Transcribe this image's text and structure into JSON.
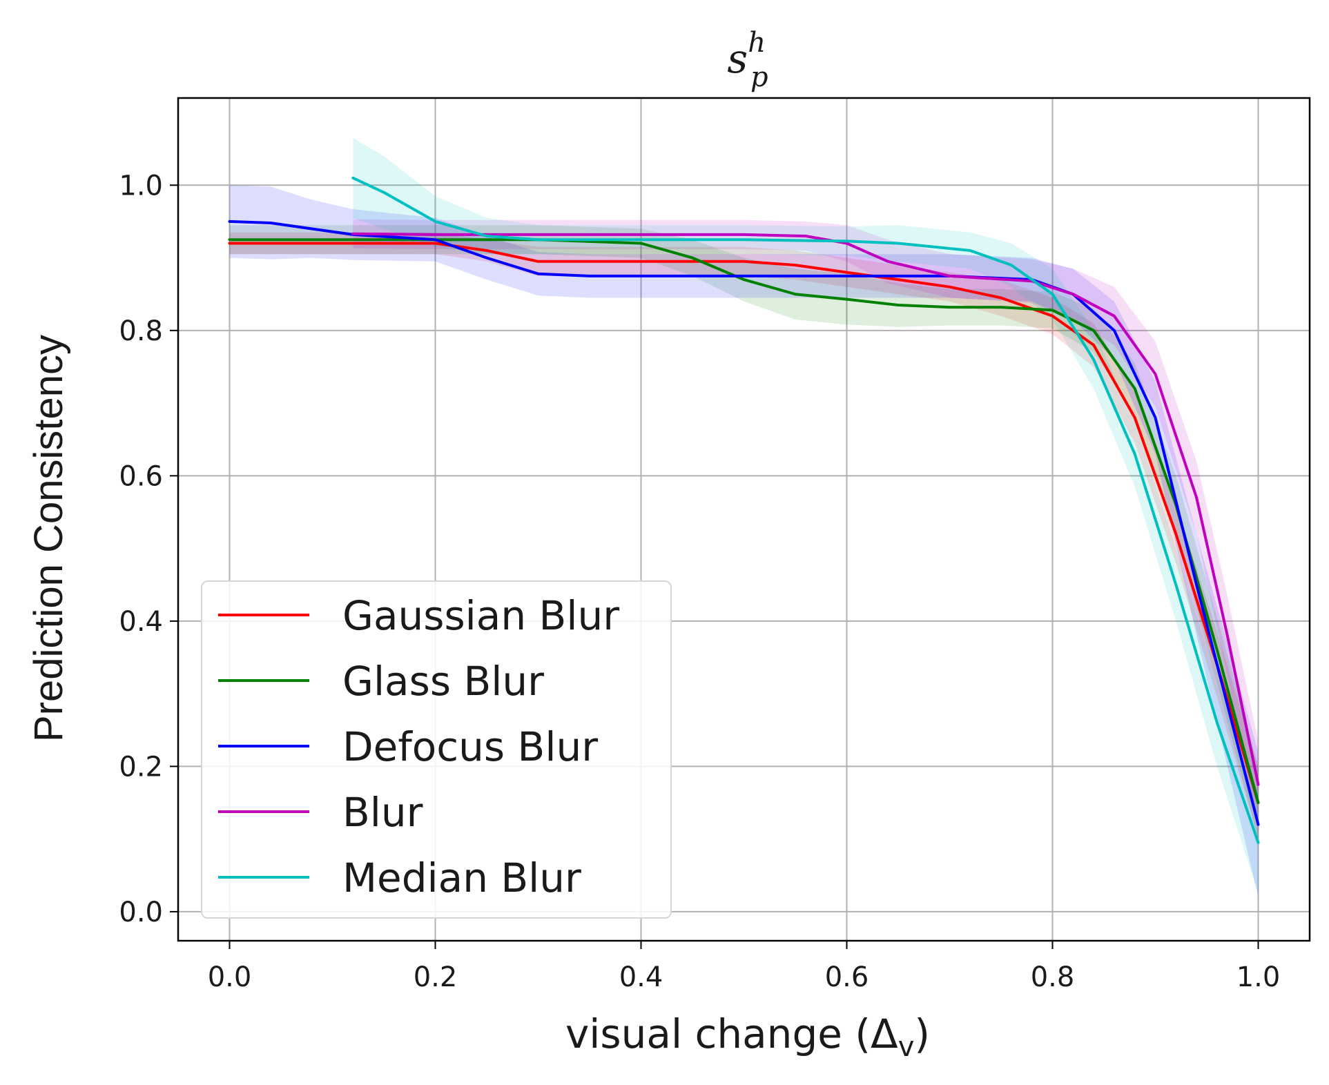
{
  "chart_data": {
    "type": "line",
    "title": {
      "main": "s",
      "sup": "h",
      "sub": "p"
    },
    "xlabel": {
      "text": "visual change (Δ",
      "sub": "v",
      "close": ")"
    },
    "ylabel": "Prediction Consistency",
    "xlim": [
      -0.05,
      1.05
    ],
    "ylim": [
      -0.04,
      1.12
    ],
    "xticks": [
      0.0,
      0.2,
      0.4,
      0.6,
      0.8,
      1.0
    ],
    "xtick_labels": [
      "0.0",
      "0.2",
      "0.4",
      "0.6",
      "0.8",
      "1.0"
    ],
    "yticks": [
      0.0,
      0.2,
      0.4,
      0.6,
      0.8,
      1.0
    ],
    "ytick_labels": [
      "0.0",
      "0.2",
      "0.4",
      "0.6",
      "0.8",
      "1.0"
    ],
    "grid": true,
    "legend_position": "lower-left",
    "series": [
      {
        "name": "Gaussian Blur",
        "color": "#ff0000",
        "x": [
          0.0,
          0.1,
          0.2,
          0.25,
          0.3,
          0.4,
          0.5,
          0.55,
          0.6,
          0.65,
          0.7,
          0.75,
          0.8,
          0.84,
          0.88,
          0.92,
          0.96,
          1.0
        ],
        "y": [
          0.92,
          0.92,
          0.92,
          0.91,
          0.895,
          0.895,
          0.895,
          0.89,
          0.88,
          0.87,
          0.86,
          0.845,
          0.82,
          0.78,
          0.68,
          0.52,
          0.34,
          0.15
        ],
        "band": [
          0.015,
          0.015,
          0.015,
          0.015,
          0.02,
          0.02,
          0.02,
          0.02,
          0.02,
          0.02,
          0.02,
          0.025,
          0.025,
          0.03,
          0.035,
          0.04,
          0.045,
          0.05
        ]
      },
      {
        "name": "Glass Blur",
        "color": "#008000",
        "x": [
          0.0,
          0.1,
          0.2,
          0.3,
          0.4,
          0.45,
          0.5,
          0.55,
          0.6,
          0.65,
          0.7,
          0.75,
          0.8,
          0.84,
          0.88,
          0.92,
          0.96,
          1.0
        ],
        "y": [
          0.925,
          0.925,
          0.925,
          0.925,
          0.92,
          0.9,
          0.87,
          0.85,
          0.843,
          0.835,
          0.832,
          0.832,
          0.828,
          0.8,
          0.72,
          0.56,
          0.36,
          0.15
        ],
        "band": [
          0.02,
          0.02,
          0.02,
          0.02,
          0.02,
          0.025,
          0.03,
          0.035,
          0.035,
          0.03,
          0.025,
          0.025,
          0.025,
          0.03,
          0.035,
          0.04,
          0.045,
          0.05
        ]
      },
      {
        "name": "Defocus Blur",
        "color": "#0000ff",
        "x": [
          0.0,
          0.04,
          0.08,
          0.12,
          0.2,
          0.25,
          0.3,
          0.35,
          0.4,
          0.5,
          0.6,
          0.7,
          0.78,
          0.82,
          0.86,
          0.9,
          0.94,
          1.0
        ],
        "y": [
          0.95,
          0.948,
          0.94,
          0.932,
          0.925,
          0.9,
          0.878,
          0.875,
          0.875,
          0.875,
          0.875,
          0.875,
          0.87,
          0.85,
          0.8,
          0.68,
          0.45,
          0.12
        ],
        "band": [
          0.05,
          0.05,
          0.04,
          0.035,
          0.03,
          0.03,
          0.03,
          0.03,
          0.03,
          0.03,
          0.03,
          0.03,
          0.03,
          0.035,
          0.04,
          0.05,
          0.07,
          0.1
        ]
      },
      {
        "name": "Blur",
        "color": "#bf00bf",
        "x": [
          0.12,
          0.2,
          0.3,
          0.4,
          0.5,
          0.56,
          0.6,
          0.64,
          0.7,
          0.78,
          0.82,
          0.86,
          0.9,
          0.94,
          0.97,
          1.0
        ],
        "y": [
          0.933,
          0.932,
          0.932,
          0.932,
          0.932,
          0.93,
          0.92,
          0.895,
          0.875,
          0.868,
          0.85,
          0.82,
          0.74,
          0.57,
          0.38,
          0.175
        ],
        "band": [
          0.02,
          0.02,
          0.02,
          0.02,
          0.02,
          0.02,
          0.025,
          0.03,
          0.03,
          0.03,
          0.035,
          0.04,
          0.045,
          0.05,
          0.055,
          0.06
        ]
      },
      {
        "name": "Median Blur",
        "color": "#00bfbf",
        "x": [
          0.12,
          0.15,
          0.2,
          0.25,
          0.3,
          0.4,
          0.5,
          0.6,
          0.65,
          0.72,
          0.76,
          0.8,
          0.84,
          0.88,
          0.92,
          0.96,
          1.0
        ],
        "y": [
          1.01,
          0.99,
          0.95,
          0.93,
          0.925,
          0.925,
          0.925,
          0.923,
          0.92,
          0.91,
          0.89,
          0.85,
          0.76,
          0.63,
          0.45,
          0.26,
          0.095
        ],
        "band": [
          0.055,
          0.05,
          0.035,
          0.025,
          0.02,
          0.02,
          0.02,
          0.02,
          0.025,
          0.025,
          0.03,
          0.035,
          0.04,
          0.045,
          0.05,
          0.06,
          0.07
        ]
      }
    ]
  }
}
